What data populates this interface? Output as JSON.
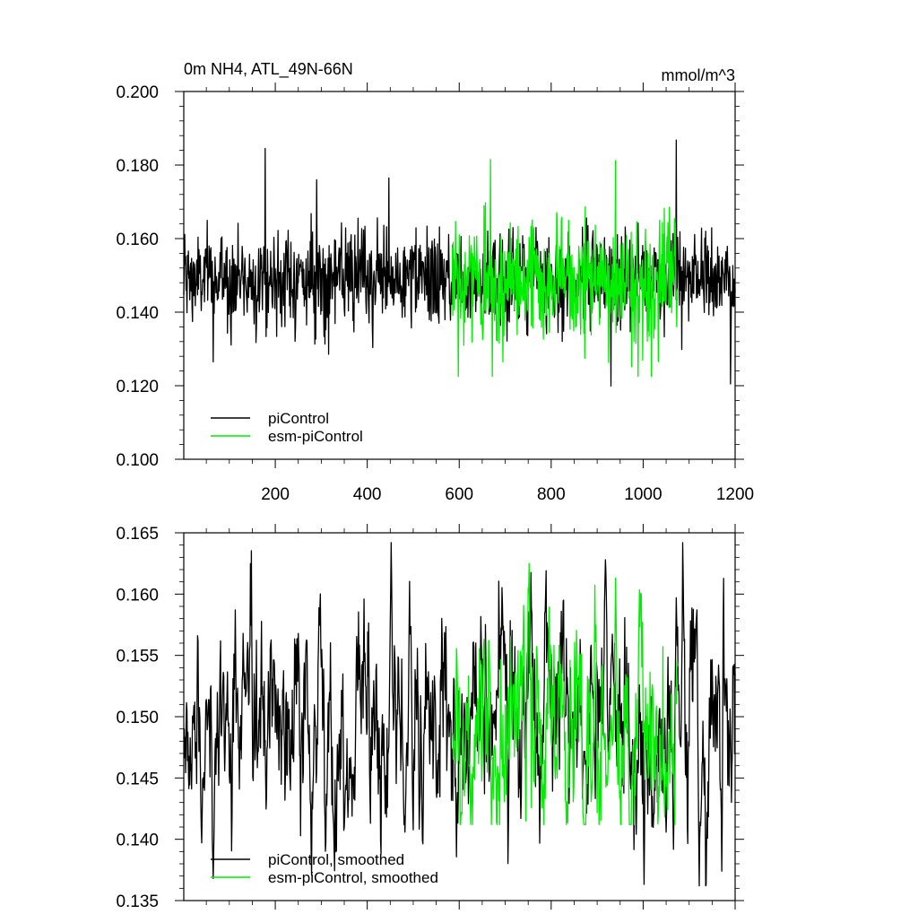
{
  "chart_data": [
    {
      "type": "line",
      "title": "0m NH4, ATL_49N-66N",
      "units": "mmol/m^3",
      "xlim": [
        1,
        1200
      ],
      "ylim": [
        0.1,
        0.2
      ],
      "x_ticks": [
        200,
        400,
        600,
        800,
        1000,
        1200
      ],
      "x_tick_labels": [
        "200",
        "400",
        "600",
        "800",
        "1000",
        "1200"
      ],
      "y_ticks": [
        0.1,
        0.12,
        0.14,
        0.16,
        0.18,
        0.2
      ],
      "y_tick_labels": [
        "0.100",
        "0.120",
        "0.140",
        "0.160",
        "0.180",
        "0.200"
      ],
      "grid": false,
      "legend_position": "bottom-left",
      "series": [
        {
          "name": "piControl",
          "color": "#000000",
          "x_range": [
            1,
            1200
          ],
          "mean": 0.149,
          "spread": 0.0065,
          "noise": "white",
          "min": 0.1199,
          "max": 0.1868,
          "peaks": [
            [
              178,
              0.1845
            ],
            [
              1072,
              0.1868
            ],
            [
              930,
              0.1199
            ],
            [
              1190,
              0.1205
            ],
            [
              65,
              0.1265
            ],
            [
              290,
              0.176
            ],
            [
              447,
              0.1765
            ]
          ]
        },
        {
          "name": "esm-piControl",
          "color": "#00ee00",
          "x_range": [
            585,
            1075
          ],
          "mean": 0.148,
          "spread": 0.0085,
          "noise": "white",
          "min": 0.1225,
          "max": 0.1815,
          "peaks": [
            [
              668,
              0.1815
            ],
            [
              940,
              0.1812
            ],
            [
              598,
              0.1225
            ],
            [
              695,
              0.1265
            ]
          ]
        }
      ]
    },
    {
      "type": "line",
      "title": "",
      "xlim": [
        1,
        1200
      ],
      "ylim": [
        0.135,
        0.165
      ],
      "x_ticks": [
        200,
        400,
        600,
        800,
        1000,
        1200
      ],
      "y_ticks": [
        0.135,
        0.14,
        0.145,
        0.15,
        0.155,
        0.16,
        0.165
      ],
      "y_tick_labels": [
        "0.135",
        "0.140",
        "0.145",
        "0.150",
        "0.155",
        "0.160",
        "0.165"
      ],
      "grid": false,
      "legend_position": "bottom-left",
      "series": [
        {
          "name": "piControl, smoothed",
          "color": "#000000",
          "x_range": [
            1,
            1200
          ],
          "mean": 0.1495,
          "spread": 0.0045,
          "noise": "smooth",
          "min": 0.1362,
          "max": 0.1642,
          "peaks": [
            [
              452,
              0.1642
            ],
            [
              918,
              0.1628
            ],
            [
              1072,
              0.1597
            ],
            [
              65,
              0.1368
            ],
            [
              1122,
              0.1362
            ],
            [
              40,
              0.1397
            ],
            [
              480,
              0.1412
            ]
          ]
        },
        {
          "name": "esm-piControl, smoothed",
          "color": "#00ee00",
          "x_range": [
            585,
            1075
          ],
          "mean": 0.1485,
          "spread": 0.0045,
          "noise": "smooth",
          "min": 0.1412,
          "max": 0.1625,
          "peaks": [
            [
              668,
              0.1625
            ],
            [
              940,
              0.1613
            ],
            [
              670,
              0.1412
            ],
            [
              745,
              0.1415
            ]
          ]
        }
      ]
    }
  ]
}
